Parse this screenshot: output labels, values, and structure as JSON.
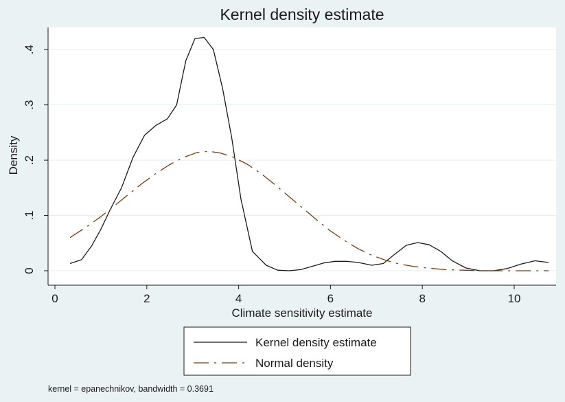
{
  "chart_data": {
    "type": "line",
    "title": "Kernel density estimate",
    "xlabel": "Climate sensitivity estimate",
    "ylabel": "Density",
    "xlim": [
      0,
      11
    ],
    "ylim": [
      0,
      0.44
    ],
    "xticks": [
      0,
      2,
      4,
      6,
      8,
      10
    ],
    "xtick_labels": [
      "0",
      "2",
      "4",
      "6",
      "8",
      "10"
    ],
    "yticks": [
      0,
      0.1,
      0.2,
      0.3,
      0.4
    ],
    "ytick_labels": [
      "0",
      ".1",
      ".2",
      ".3",
      ".4"
    ],
    "grid": true,
    "legend_position": "bottom",
    "series": [
      {
        "name": "Kernel density estimate",
        "color": "#1a1a1a",
        "style": "solid",
        "x": [
          0.33,
          0.58,
          0.8,
          1.0,
          1.2,
          1.45,
          1.7,
          1.95,
          2.2,
          2.45,
          2.65,
          2.85,
          3.05,
          3.25,
          3.45,
          3.65,
          3.85,
          4.05,
          4.3,
          4.6,
          4.85,
          5.1,
          5.35,
          5.6,
          5.85,
          6.1,
          6.35,
          6.6,
          6.9,
          7.15,
          7.4,
          7.65,
          7.9,
          8.15,
          8.4,
          8.65,
          8.95,
          9.25,
          9.55,
          9.85,
          10.15,
          10.45,
          10.75
        ],
        "y": [
          0.013,
          0.02,
          0.045,
          0.075,
          0.11,
          0.15,
          0.205,
          0.245,
          0.263,
          0.275,
          0.3,
          0.38,
          0.42,
          0.422,
          0.4,
          0.33,
          0.24,
          0.13,
          0.035,
          0.01,
          0.001,
          0.0,
          0.002,
          0.008,
          0.014,
          0.017,
          0.017,
          0.015,
          0.01,
          0.013,
          0.03,
          0.046,
          0.051,
          0.047,
          0.035,
          0.018,
          0.005,
          0.0,
          0.0,
          0.004,
          0.012,
          0.018,
          0.015
        ]
      },
      {
        "name": "Normal density",
        "color": "#7a3b12",
        "style": "dashdot",
        "x": [
          0.33,
          0.7,
          1.0,
          1.3,
          1.6,
          1.9,
          2.2,
          2.5,
          2.8,
          3.1,
          3.35,
          3.6,
          3.9,
          4.2,
          4.5,
          4.8,
          5.1,
          5.4,
          5.7,
          6.0,
          6.3,
          6.6,
          6.9,
          7.2,
          7.5,
          7.8,
          8.1,
          8.5,
          8.9,
          9.3,
          9.8,
          10.3,
          10.75
        ],
        "y": [
          0.06,
          0.08,
          0.098,
          0.118,
          0.138,
          0.158,
          0.176,
          0.192,
          0.205,
          0.214,
          0.216,
          0.213,
          0.205,
          0.192,
          0.175,
          0.155,
          0.134,
          0.113,
          0.092,
          0.072,
          0.055,
          0.04,
          0.028,
          0.019,
          0.012,
          0.008,
          0.005,
          0.002,
          0.001,
          0.0,
          0.0,
          0.0,
          0.0
        ]
      }
    ],
    "note": "kernel = epanechnikov, bandwidth = 0.3691"
  }
}
